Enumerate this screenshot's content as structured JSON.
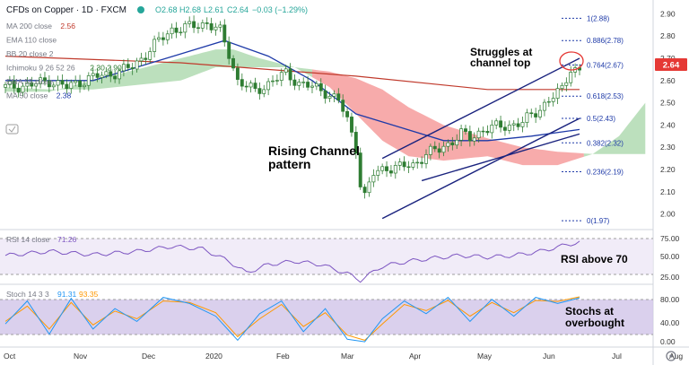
{
  "header": {
    "symbol_title": "CFDs on Copper · 1D · FXCM",
    "ohlc": [
      "O2.68",
      "H2.68",
      "L2.61",
      "C2.64",
      "−0.03 (−1.29%)"
    ]
  },
  "indicator_legend": [
    {
      "label": "MA 200 close",
      "value": "2.56",
      "color": "#c0392b"
    },
    {
      "label": "EMA 110 close",
      "value": "",
      "color": "#888888"
    },
    {
      "label": "BB 20 close 2",
      "value": "",
      "color": "#888888"
    },
    {
      "label": "Ichimoku 9 26 52 26",
      "value": "2.30 2.90",
      "color": "#2e7d32"
    },
    {
      "label": "EMA 55 close",
      "value": "",
      "color": "#888888"
    },
    {
      "label": "MA 50 close",
      "value": "2.38",
      "color": "#1e3aa8"
    }
  ],
  "price_axis": {
    "ticks": [
      "2.90",
      "2.80",
      "2.70",
      "2.60",
      "2.50",
      "2.40",
      "2.30",
      "2.20",
      "2.10",
      "2.00"
    ],
    "current_price": "2.64"
  },
  "fib_levels": [
    {
      "label": "1(2.88)",
      "price": 2.88
    },
    {
      "label": "0.886(2.78)",
      "price": 2.78
    },
    {
      "label": "0.764(2.67)",
      "price": 2.67
    },
    {
      "label": "0.618(2.53)",
      "price": 2.53
    },
    {
      "label": "0.5(2.43)",
      "price": 2.43
    },
    {
      "label": "0.382(2.32)",
      "price": 2.32
    },
    {
      "label": "0.236(2.19)",
      "price": 2.19
    },
    {
      "label": "0(1.97)",
      "price": 1.97
    }
  ],
  "annotations": {
    "struggle": [
      "Struggles at",
      "channel top"
    ],
    "channel": [
      "Rising Channel",
      "pattern"
    ],
    "rsi_note": "RSI above 70",
    "stoch_note": [
      "Stochs at",
      "overbought"
    ]
  },
  "rsi": {
    "label": "RSI 14 close",
    "value": "71.26",
    "ticks": [
      "75.00",
      "50.00",
      "25.00"
    ],
    "current": 71.26
  },
  "stoch": {
    "label": "Stoch 14 3 3",
    "k": "91.31",
    "d": "93.35",
    "ticks": [
      "80.00",
      "40.00",
      "0.00"
    ]
  },
  "time_axis": [
    "Oct",
    "Nov",
    "Dec",
    "2020",
    "Feb",
    "Mar",
    "Apr",
    "May",
    "Jun",
    "Jul",
    "Aug"
  ],
  "colors": {
    "up": "#26a69a",
    "down": "#ef5350",
    "candle": "#2e7d32",
    "ma200": "#c0392b",
    "ma50": "#1e3aa8",
    "channel": "#1a237e",
    "cloud_green": "#a5d6a7",
    "cloud_red": "#f48f8f",
    "rsi": "#7e57c2",
    "stoch_k": "#2196f3",
    "stoch_d": "#ff9800",
    "badge": "#e53935"
  },
  "chart_data": {
    "type": "candlestick",
    "title": "CFDs on Copper · 1D · FXCM",
    "ylim": [
      1.93,
      2.93
    ],
    "x_labels": [
      "Oct",
      "Nov",
      "Dec",
      "2020",
      "Feb",
      "Mar",
      "Apr",
      "May",
      "Jun",
      "Jul",
      "Aug"
    ],
    "close_anchors": [
      [
        0,
        2.57
      ],
      [
        6,
        2.58
      ],
      [
        10,
        2.6
      ],
      [
        14,
        2.57
      ],
      [
        19,
        2.61
      ],
      [
        24,
        2.63
      ],
      [
        29,
        2.66
      ],
      [
        34,
        2.76
      ],
      [
        38,
        2.83
      ],
      [
        42,
        2.84
      ],
      [
        46,
        2.86
      ],
      [
        49,
        2.82
      ],
      [
        51,
        2.72
      ],
      [
        53,
        2.6
      ],
      [
        57,
        2.55
      ],
      [
        61,
        2.6
      ],
      [
        64,
        2.63
      ],
      [
        67,
        2.59
      ],
      [
        70,
        2.57
      ],
      [
        73,
        2.55
      ],
      [
        76,
        2.51
      ],
      [
        78,
        2.42
      ],
      [
        80,
        2.3
      ],
      [
        81,
        2.14
      ],
      [
        82,
        2.08
      ],
      [
        84,
        2.18
      ],
      [
        87,
        2.21
      ],
      [
        90,
        2.21
      ],
      [
        93,
        2.22
      ],
      [
        96,
        2.27
      ],
      [
        99,
        2.29
      ],
      [
        102,
        2.33
      ],
      [
        104,
        2.36
      ],
      [
        106,
        2.34
      ],
      [
        109,
        2.38
      ],
      [
        112,
        2.39
      ],
      [
        115,
        2.4
      ],
      [
        118,
        2.41
      ],
      [
        121,
        2.46
      ],
      [
        124,
        2.51
      ],
      [
        127,
        2.56
      ],
      [
        129,
        2.66
      ],
      [
        131,
        2.64
      ]
    ],
    "ma200": [
      [
        0,
        2.71
      ],
      [
        40,
        2.68
      ],
      [
        80,
        2.62
      ],
      [
        110,
        2.56
      ],
      [
        131,
        2.56
      ]
    ],
    "ma50": [
      [
        0,
        2.6
      ],
      [
        20,
        2.6
      ],
      [
        40,
        2.72
      ],
      [
        50,
        2.78
      ],
      [
        60,
        2.71
      ],
      [
        70,
        2.6
      ],
      [
        80,
        2.45
      ],
      [
        90,
        2.39
      ],
      [
        100,
        2.33
      ],
      [
        110,
        2.33
      ],
      [
        120,
        2.35
      ],
      [
        131,
        2.38
      ]
    ],
    "channel_lower": [
      [
        86,
        1.98
      ],
      [
        131,
        2.43
      ]
    ],
    "channel_upper": [
      [
        86,
        2.25
      ],
      [
        131,
        2.7
      ]
    ],
    "channel_mid": [
      [
        95,
        2.15
      ],
      [
        131,
        2.36
      ]
    ],
    "rsi_values": [
      [
        0,
        55
      ],
      [
        10,
        60
      ],
      [
        20,
        56
      ],
      [
        30,
        60
      ],
      [
        38,
        66
      ],
      [
        45,
        63
      ],
      [
        51,
        48
      ],
      [
        55,
        34
      ],
      [
        60,
        44
      ],
      [
        66,
        48
      ],
      [
        72,
        44
      ],
      [
        78,
        33
      ],
      [
        81,
        25
      ],
      [
        86,
        42
      ],
      [
        92,
        48
      ],
      [
        98,
        52
      ],
      [
        104,
        55
      ],
      [
        110,
        53
      ],
      [
        116,
        55
      ],
      [
        122,
        60
      ],
      [
        128,
        68
      ],
      [
        131,
        71
      ]
    ],
    "stoch_k": [
      [
        0,
        40
      ],
      [
        5,
        85
      ],
      [
        10,
        20
      ],
      [
        15,
        90
      ],
      [
        20,
        30
      ],
      [
        25,
        70
      ],
      [
        30,
        45
      ],
      [
        36,
        92
      ],
      [
        42,
        80
      ],
      [
        48,
        55
      ],
      [
        53,
        8
      ],
      [
        58,
        60
      ],
      [
        63,
        85
      ],
      [
        68,
        25
      ],
      [
        73,
        70
      ],
      [
        78,
        10
      ],
      [
        82,
        5
      ],
      [
        86,
        50
      ],
      [
        91,
        85
      ],
      [
        96,
        60
      ],
      [
        101,
        92
      ],
      [
        106,
        45
      ],
      [
        111,
        88
      ],
      [
        116,
        55
      ],
      [
        121,
        92
      ],
      [
        126,
        80
      ],
      [
        131,
        91
      ]
    ],
    "stoch_d": [
      [
        0,
        45
      ],
      [
        5,
        75
      ],
      [
        10,
        30
      ],
      [
        15,
        82
      ],
      [
        20,
        38
      ],
      [
        25,
        65
      ],
      [
        30,
        50
      ],
      [
        36,
        85
      ],
      [
        42,
        82
      ],
      [
        48,
        62
      ],
      [
        53,
        15
      ],
      [
        58,
        50
      ],
      [
        63,
        78
      ],
      [
        68,
        35
      ],
      [
        73,
        62
      ],
      [
        78,
        18
      ],
      [
        82,
        8
      ],
      [
        86,
        40
      ],
      [
        91,
        78
      ],
      [
        96,
        66
      ],
      [
        101,
        86
      ],
      [
        106,
        55
      ],
      [
        111,
        82
      ],
      [
        116,
        62
      ],
      [
        121,
        86
      ],
      [
        126,
        84
      ],
      [
        131,
        93
      ]
    ]
  }
}
